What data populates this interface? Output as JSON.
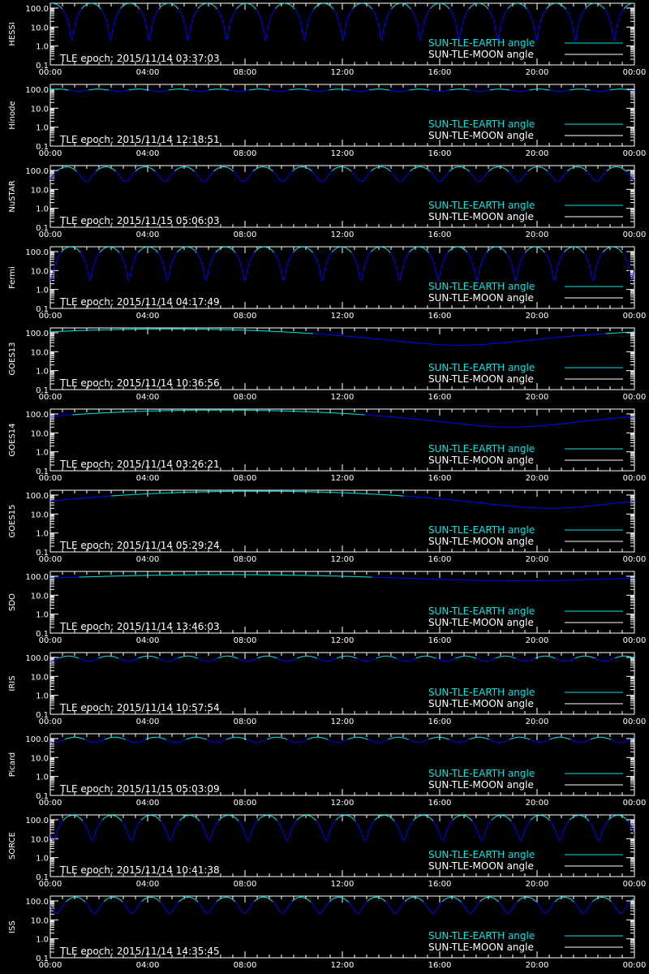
{
  "legend": {
    "earth_label": "SUN-TLE-EARTH angle",
    "moon_label": "SUN-TLE-MOON angle",
    "earth_color": "#00e5e5",
    "moon_color": "#ffffff"
  },
  "colors": {
    "background": "#000000",
    "axes": "#ffffff",
    "curve_low": "#0000ff",
    "curve_high": "#00e5e5"
  },
  "chart_data": [
    {
      "type": "line",
      "ylabel": "HESSI",
      "epoch_text": "TLE epoch: 2015/11/14 03:37:03",
      "scale": "log",
      "ylim": [
        0.1,
        180
      ],
      "yticks": [
        "100.0",
        "10.0",
        "1.0",
        "0.1"
      ],
      "x_ticks": [
        "00:00",
        "04:00",
        "08:00",
        "12:00",
        "16:00",
        "20:00",
        "00:00"
      ],
      "x_range_hours": [
        0,
        24
      ],
      "orbit_period_min": 95.5,
      "phase_min": 5,
      "min_angle": 2,
      "max_angle": 178
    },
    {
      "type": "line",
      "ylabel": "Hinode",
      "epoch_text": "TLE epoch: 2015/11/14 12:18:51",
      "scale": "log",
      "ylim": [
        0.1,
        180
      ],
      "yticks": [
        "100.0",
        "10.0",
        "1.0",
        "0.1"
      ],
      "x_ticks": [
        "00:00",
        "04:00",
        "08:00",
        "12:00",
        "16:00",
        "20:00",
        "00:00"
      ],
      "x_range_hours": [
        0,
        24
      ],
      "orbit_period_min": 98.8,
      "phase_min": 20,
      "min_angle": 78,
      "max_angle": 102
    },
    {
      "type": "line",
      "ylabel": "NuSTAR",
      "epoch_text": "TLE epoch: 2015/11/15 05:06:03",
      "scale": "log",
      "ylim": [
        0.1,
        180
      ],
      "yticks": [
        "100.0",
        "10.0",
        "1.0",
        "0.1"
      ],
      "x_ticks": [
        "00:00",
        "04:00",
        "08:00",
        "12:00",
        "16:00",
        "20:00",
        "00:00"
      ],
      "x_range_hours": [
        0,
        24
      ],
      "orbit_period_min": 96.8,
      "phase_min": 40,
      "min_angle": 25,
      "max_angle": 155
    },
    {
      "type": "line",
      "ylabel": "Fermi",
      "epoch_text": "TLE epoch: 2015/11/14 04:17:49",
      "scale": "log",
      "ylim": [
        0.1,
        180
      ],
      "yticks": [
        "100.0",
        "10.0",
        "1.0",
        "0.1"
      ],
      "x_ticks": [
        "00:00",
        "04:00",
        "08:00",
        "12:00",
        "16:00",
        "20:00",
        "00:00"
      ],
      "x_range_hours": [
        0,
        24
      ],
      "orbit_period_min": 95.4,
      "phase_min": 50,
      "min_angle": 3,
      "max_angle": 177
    },
    {
      "type": "line",
      "ylabel": "GOES13",
      "epoch_text": "TLE epoch: 2015/11/14 10:36:56",
      "scale": "log",
      "ylim": [
        0.1,
        180
      ],
      "yticks": [
        "100.0",
        "10.0",
        "1.0",
        "0.1"
      ],
      "x_ticks": [
        "00:00",
        "04:00",
        "08:00",
        "12:00",
        "16:00",
        "20:00",
        "00:00"
      ],
      "x_range_hours": [
        0,
        24
      ],
      "geo": true,
      "min_hour": 4.8,
      "min_angle": 22,
      "max_angle": 158
    },
    {
      "type": "line",
      "ylabel": "GOES14",
      "epoch_text": "TLE epoch: 2015/11/14 03:26:21",
      "scale": "log",
      "ylim": [
        0.1,
        180
      ],
      "yticks": [
        "100.0",
        "10.0",
        "1.0",
        "0.1"
      ],
      "x_ticks": [
        "00:00",
        "04:00",
        "08:00",
        "12:00",
        "16:00",
        "20:00",
        "00:00"
      ],
      "x_range_hours": [
        0,
        24
      ],
      "geo": true,
      "min_hour": 6.9,
      "min_angle": 20,
      "max_angle": 160
    },
    {
      "type": "line",
      "ylabel": "GOES15",
      "epoch_text": "TLE epoch: 2015/11/14 05:29:24",
      "scale": "log",
      "ylim": [
        0.1,
        180
      ],
      "yticks": [
        "100.0",
        "10.0",
        "1.0",
        "0.1"
      ],
      "x_ticks": [
        "00:00",
        "04:00",
        "08:00",
        "12:00",
        "16:00",
        "20:00",
        "00:00"
      ],
      "x_range_hours": [
        0,
        24
      ],
      "geo": true,
      "min_hour": 8.5,
      "min_angle": 20,
      "max_angle": 160
    },
    {
      "type": "line",
      "ylabel": "SDO",
      "epoch_text": "TLE epoch: 2015/11/14 13:46:03",
      "scale": "log",
      "ylim": [
        0.1,
        180
      ],
      "yticks": [
        "100.0",
        "10.0",
        "1.0",
        "0.1"
      ],
      "x_ticks": [
        "00:00",
        "04:00",
        "08:00",
        "12:00",
        "16:00",
        "20:00",
        "00:00"
      ],
      "x_range_hours": [
        0,
        24
      ],
      "geo": true,
      "min_hour": 7.2,
      "min_angle": 58,
      "max_angle": 122
    },
    {
      "type": "line",
      "ylabel": "IRIS",
      "epoch_text": "TLE epoch: 2015/11/14 10:57:54",
      "scale": "log",
      "ylim": [
        0.1,
        180
      ],
      "yticks": [
        "100.0",
        "10.0",
        "1.0",
        "0.1"
      ],
      "x_ticks": [
        "00:00",
        "04:00",
        "08:00",
        "12:00",
        "16:00",
        "20:00",
        "00:00"
      ],
      "x_range_hours": [
        0,
        24
      ],
      "orbit_period_min": 97.9,
      "phase_min": 45,
      "min_angle": 62,
      "max_angle": 118
    },
    {
      "type": "line",
      "ylabel": "Picard",
      "epoch_text": "TLE epoch: 2015/11/15 05:03:09",
      "scale": "log",
      "ylim": [
        0.1,
        180
      ],
      "yticks": [
        "100.0",
        "10.0",
        "1.0",
        "0.1"
      ],
      "x_ticks": [
        "00:00",
        "04:00",
        "08:00",
        "12:00",
        "16:00",
        "20:00",
        "00:00"
      ],
      "x_range_hours": [
        0,
        24
      ],
      "orbit_period_min": 99.7,
      "phase_min": 60,
      "min_angle": 62,
      "max_angle": 118
    },
    {
      "type": "line",
      "ylabel": "SORCE",
      "epoch_text": "TLE epoch: 2015/11/14 10:41:38",
      "scale": "log",
      "ylim": [
        0.1,
        180
      ],
      "yticks": [
        "100.0",
        "10.0",
        "1.0",
        "0.1"
      ],
      "x_ticks": [
        "00:00",
        "04:00",
        "08:00",
        "12:00",
        "16:00",
        "20:00",
        "00:00"
      ],
      "x_range_hours": [
        0,
        24
      ],
      "orbit_period_min": 96.0,
      "phase_min": 55,
      "min_angle": 8,
      "max_angle": 172
    },
    {
      "type": "line",
      "ylabel": "ISS",
      "epoch_text": "TLE epoch: 2015/11/14 14:35:45",
      "scale": "log",
      "ylim": [
        0.1,
        180
      ],
      "yticks": [
        "100.0",
        "10.0",
        "1.0",
        "0.1"
      ],
      "x_ticks": [
        "00:00",
        "04:00",
        "08:00",
        "12:00",
        "16:00",
        "20:00",
        "00:00"
      ],
      "x_range_hours": [
        0,
        24
      ],
      "orbit_period_min": 92.7,
      "phase_min": 62,
      "min_angle": 22,
      "max_angle": 158
    }
  ]
}
